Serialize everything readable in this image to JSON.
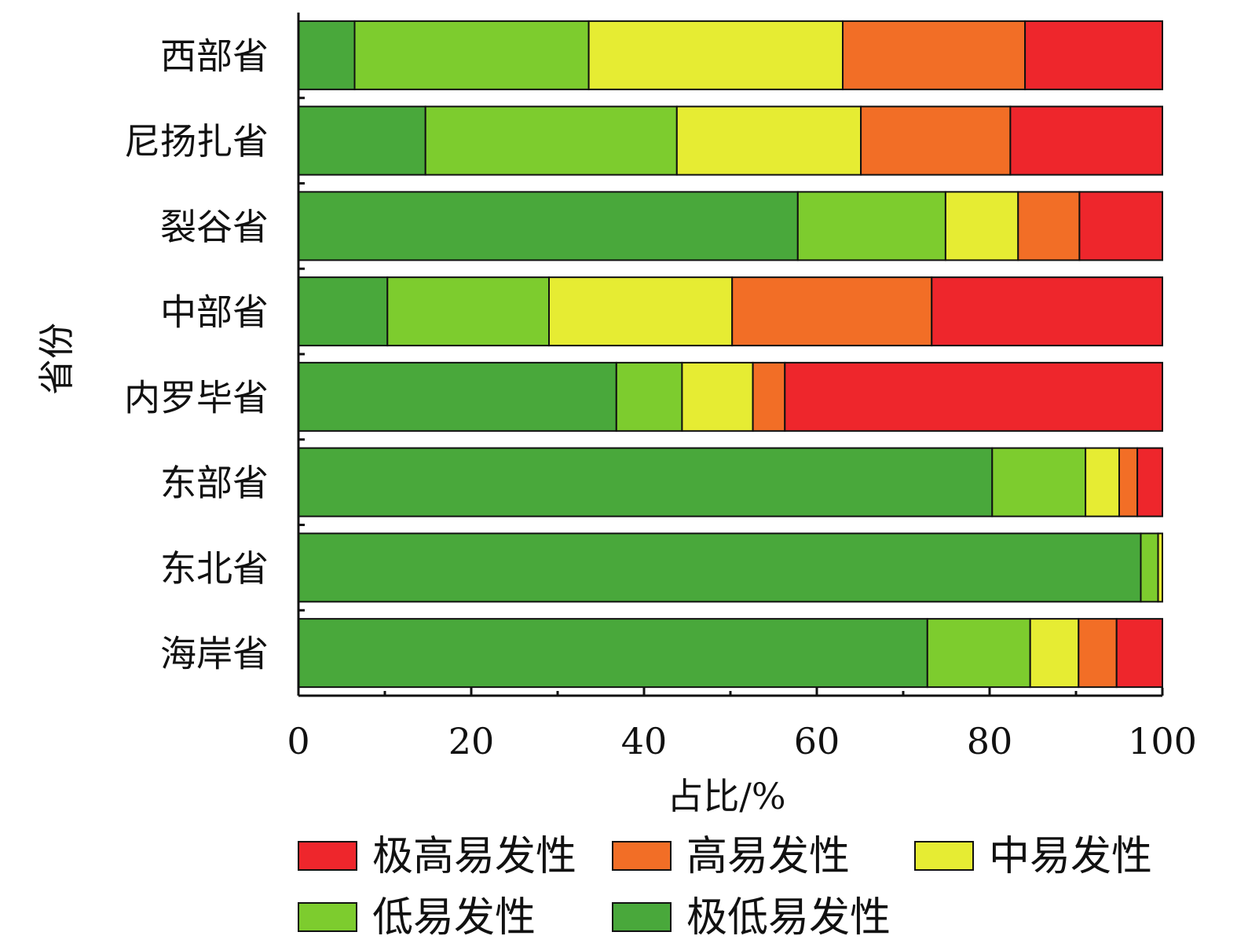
{
  "chart_data": {
    "type": "bar",
    "orientation": "horizontal",
    "stacked": true,
    "xlabel": "占比/%",
    "ylabel": "省份",
    "xlim": [
      0,
      100
    ],
    "xticks": [
      0,
      20,
      40,
      60,
      80,
      100
    ],
    "grid": false,
    "legend_position": "bottom",
    "categories": [
      "西部省",
      "尼扬扎省",
      "裂谷省",
      "中部省",
      "内罗毕省",
      "东部省",
      "东北省",
      "海岸省"
    ],
    "series": [
      {
        "name": "极低易发性",
        "color": "#49a83b",
        "values": [
          6.5,
          14.7,
          57.8,
          10.3,
          36.8,
          80.3,
          97.5,
          72.8
        ]
      },
      {
        "name": "低易发性",
        "color": "#7dcc2e",
        "values": [
          27.1,
          29.1,
          17.1,
          18.7,
          7.6,
          10.8,
          2.0,
          11.9
        ]
      },
      {
        "name": "中易发性",
        "color": "#e6ec33",
        "values": [
          29.4,
          21.3,
          8.4,
          21.2,
          8.2,
          3.9,
          0.5,
          5.6
        ]
      },
      {
        "name": "高易发性",
        "color": "#f26e26",
        "values": [
          21.1,
          17.3,
          7.1,
          23.1,
          3.7,
          2.1,
          0,
          4.4
        ]
      },
      {
        "name": "极高易发性",
        "color": "#ee262c",
        "values": [
          15.9,
          17.6,
          9.6,
          26.7,
          43.7,
          2.9,
          0,
          5.3
        ]
      }
    ],
    "legend_order": [
      "极高易发性",
      "高易发性",
      "中易发性",
      "低易发性",
      "极低易发性"
    ]
  }
}
